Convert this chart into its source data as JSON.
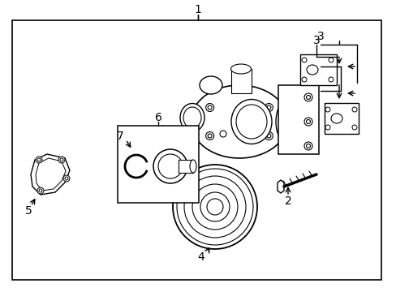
{
  "title": "",
  "background_color": "#ffffff",
  "border_color": "#000000",
  "line_color": "#000000",
  "text_color": "#000000",
  "label_1": "1",
  "label_2": "2",
  "label_3": "3",
  "label_4": "4",
  "label_5": "5",
  "label_6": "6",
  "label_7": "7",
  "fig_width": 4.89,
  "fig_height": 3.6,
  "dpi": 100
}
